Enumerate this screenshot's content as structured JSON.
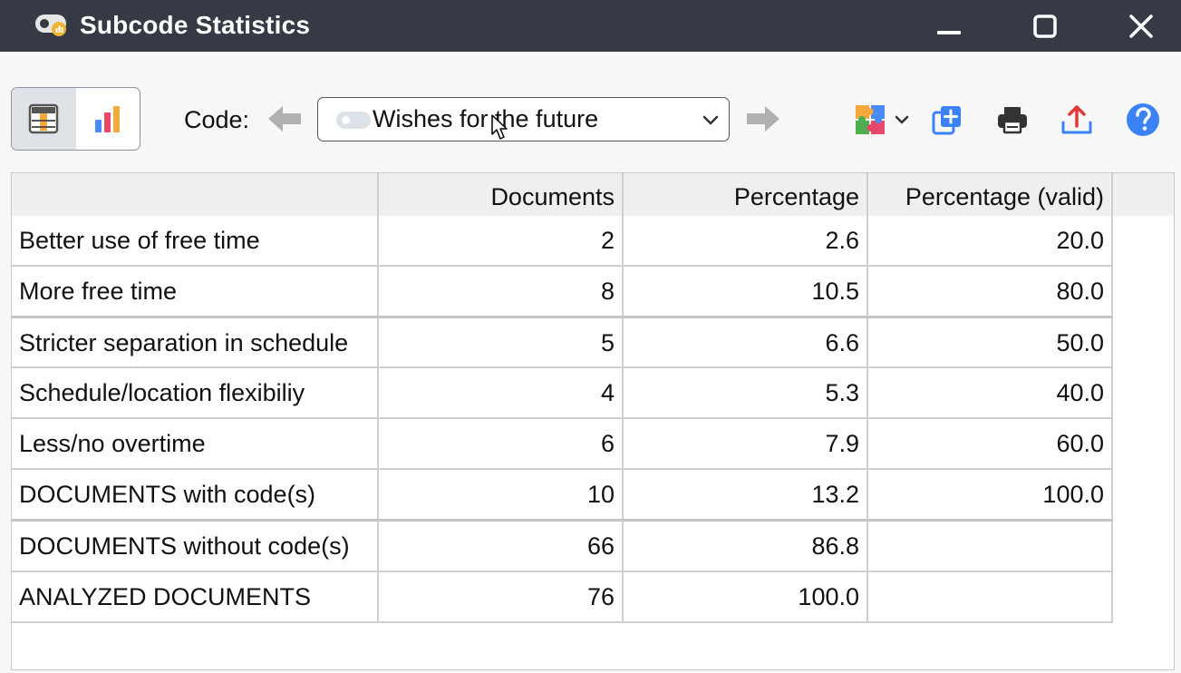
{
  "window": {
    "title": "Subcode Statistics",
    "minimize_icon": "minimize-icon",
    "maximize_icon": "maximize-icon",
    "close_icon": "close-icon"
  },
  "toolbar": {
    "view_table_icon": "table-view-icon",
    "view_chart_icon": "bar-chart-icon",
    "code_label": "Code:",
    "code_value": "Wishes for the future",
    "tools": [
      "puzzle-icon",
      "duplicate-icon",
      "print-icon",
      "export-icon",
      "help-icon"
    ]
  },
  "table": {
    "headers": [
      "",
      "Documents",
      "Percentage",
      "Percentage (valid)"
    ],
    "rows": [
      [
        "Better use of free time",
        "2",
        "2.6",
        "20.0"
      ],
      [
        "More free time",
        "8",
        "10.5",
        "80.0"
      ],
      [
        "Stricter separation in schedule",
        "5",
        "6.6",
        "50.0"
      ],
      [
        "Schedule/location flexibiliy",
        "4",
        "5.3",
        "40.0"
      ],
      [
        "Less/no overtime",
        "6",
        "7.9",
        "60.0"
      ],
      [
        "DOCUMENTS with code(s)",
        "10",
        "13.2",
        "100.0"
      ],
      [
        "DOCUMENTS without code(s)",
        "66",
        "86.8",
        ""
      ],
      [
        "ANALYZED DOCUMENTS",
        "76",
        "100.0",
        ""
      ]
    ]
  },
  "colors": {
    "titlebar": "#353a45",
    "accent_blue": "#3b82f6",
    "export_red": "#e53935"
  }
}
